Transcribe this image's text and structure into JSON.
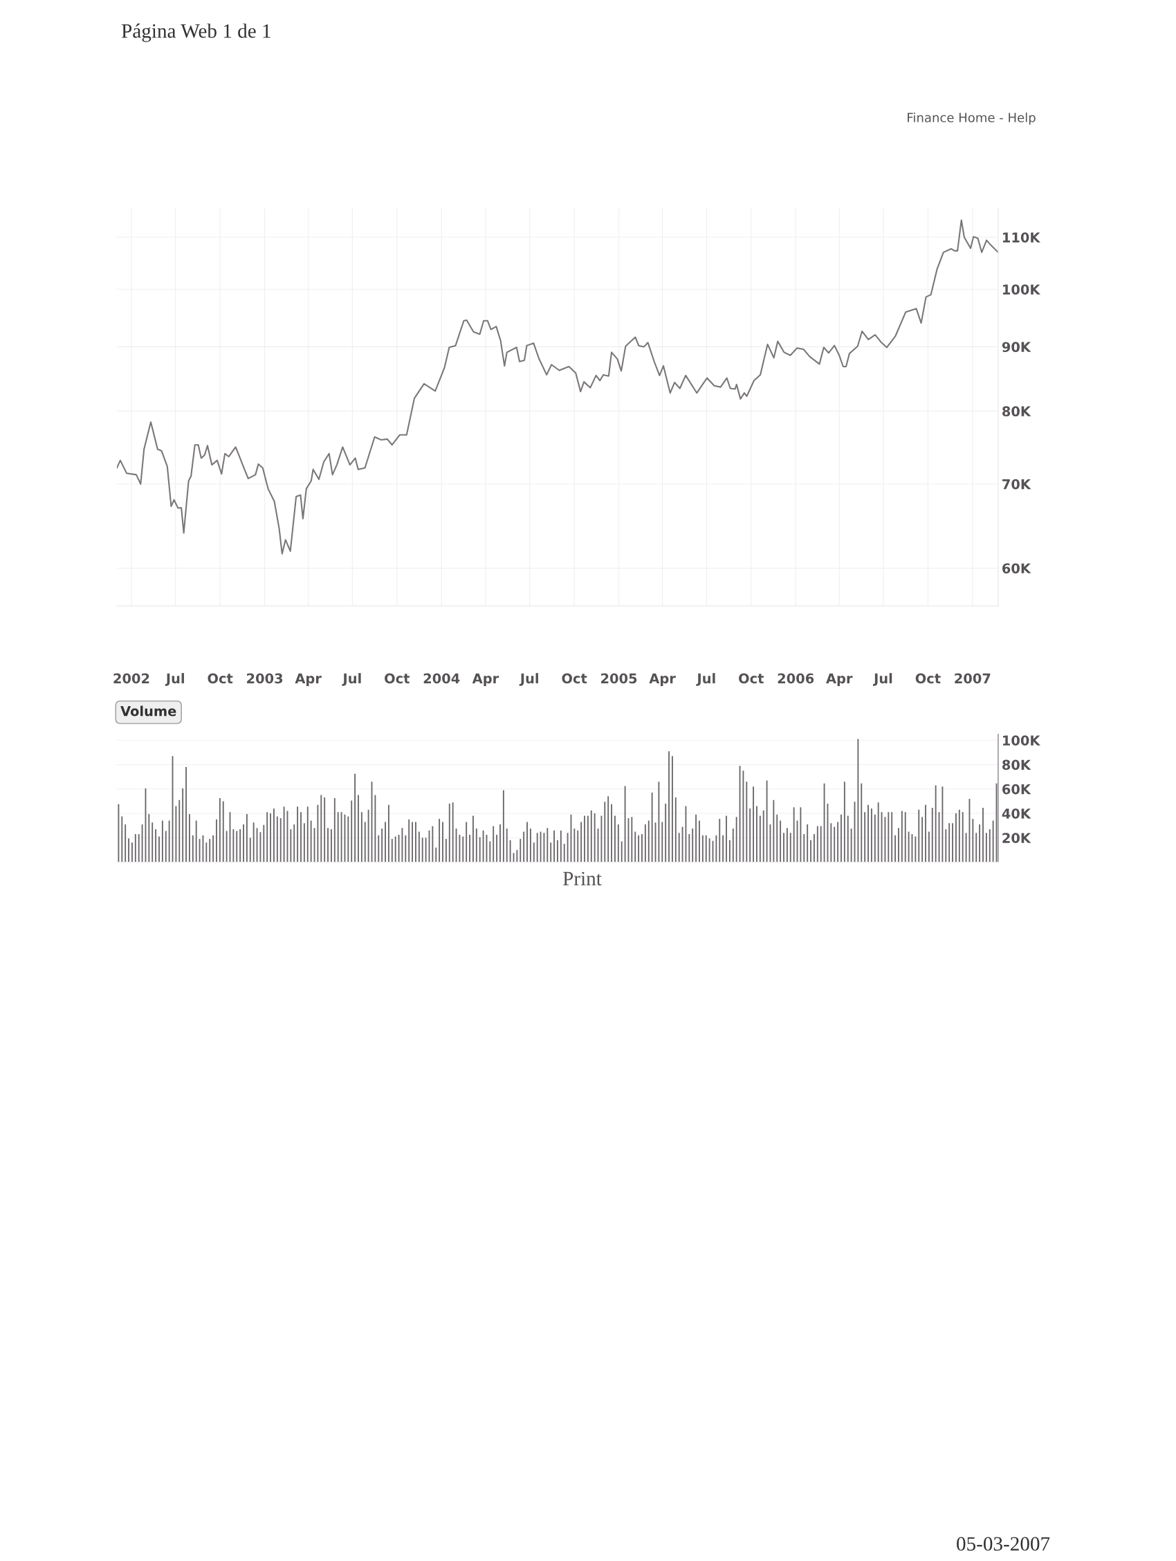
{
  "chart_data": [
    {
      "type": "line",
      "annotations": [
        "Página Web 1 de 1",
        "Finance Home - Help"
      ],
      "xlim": [
        "2002-03-02",
        "2007-02-23"
      ],
      "xticks": [
        {
          "value": "2002-04-01",
          "label": "2002"
        },
        {
          "value": "2002-07-01",
          "label": "Jul"
        },
        {
          "value": "2002-10-01",
          "label": "Oct"
        },
        {
          "value": "2003-01-01",
          "label": "2003"
        },
        {
          "value": "2003-04-01",
          "label": "Apr"
        },
        {
          "value": "2003-07-01",
          "label": "Jul"
        },
        {
          "value": "2003-10-01",
          "label": "Oct"
        },
        {
          "value": "2004-01-01",
          "label": "2004"
        },
        {
          "value": "2004-04-01",
          "label": "Apr"
        },
        {
          "value": "2004-07-01",
          "label": "Jul"
        },
        {
          "value": "2004-10-01",
          "label": "Oct"
        },
        {
          "value": "2005-01-01",
          "label": "2005"
        },
        {
          "value": "2005-04-01",
          "label": "Apr"
        },
        {
          "value": "2005-07-01",
          "label": "Jul"
        },
        {
          "value": "2005-10-01",
          "label": "Oct"
        },
        {
          "value": "2006-01-01",
          "label": "2006"
        },
        {
          "value": "2006-04-01",
          "label": "Apr"
        },
        {
          "value": "2006-07-01",
          "label": "Jul"
        },
        {
          "value": "2006-10-01",
          "label": "Oct"
        },
        {
          "value": "2007-01-01",
          "label": "2007"
        }
      ],
      "log": "y",
      "ylim": [
        56000,
        116000
      ],
      "yticks": [
        {
          "value": 60000,
          "label": "60K"
        },
        {
          "value": 70000,
          "label": "70K"
        },
        {
          "value": 80000,
          "label": "80K"
        },
        {
          "value": 90000,
          "label": "90K"
        },
        {
          "value": 100000,
          "label": "100K"
        },
        {
          "value": 110000,
          "label": "110K"
        }
      ],
      "grid": true,
      "marker": "none",
      "line_style": "solid",
      "series": [
        {
          "color": "#7a767a",
          "x": [
            "2002-03-02",
            "2002-03-09",
            "2002-03-22",
            "2002-04-11",
            "2002-04-20",
            "2002-04-27",
            "2002-05-11",
            "2002-05-25",
            "2002-06-02",
            "2002-06-14",
            "2002-06-22",
            "2002-06-28",
            "2002-07-06",
            "2002-07-13",
            "2002-07-18",
            "2002-07-28",
            "2002-08-02",
            "2002-08-10",
            "2002-08-17",
            "2002-08-23",
            "2002-08-30",
            "2002-09-05",
            "2002-09-14",
            "2002-09-25",
            "2002-10-04",
            "2002-10-11",
            "2002-10-19",
            "2002-11-02",
            "2002-11-10",
            "2002-11-19",
            "2002-11-28",
            "2002-12-13",
            "2002-12-19",
            "2002-12-28",
            "2003-01-08",
            "2003-01-21",
            "2003-01-31",
            "2003-02-06",
            "2003-02-13",
            "2003-02-23",
            "2003-03-07",
            "2003-03-16",
            "2003-03-21",
            "2003-03-28",
            "2003-04-07",
            "2003-04-11",
            "2003-04-23",
            "2003-05-03",
            "2003-05-14",
            "2003-05-21",
            "2003-05-30",
            "2003-06-11",
            "2003-06-26",
            "2003-07-07",
            "2003-07-13",
            "2003-07-27",
            "2003-08-16",
            "2003-08-29",
            "2003-09-11",
            "2003-09-21",
            "2003-10-07",
            "2003-10-21",
            "2003-11-06",
            "2003-11-26",
            "2003-12-19",
            "2004-01-07",
            "2004-01-17",
            "2004-01-30",
            "2004-02-16",
            "2004-02-22",
            "2004-03-07",
            "2004-03-20",
            "2004-03-28",
            "2004-04-05",
            "2004-04-12",
            "2004-04-23",
            "2004-05-02",
            "2004-05-10",
            "2004-05-15",
            "2004-06-04",
            "2004-06-10",
            "2004-06-20",
            "2004-06-25",
            "2004-07-09",
            "2004-07-20",
            "2004-08-05",
            "2004-08-15",
            "2004-08-31",
            "2004-09-20",
            "2004-10-04",
            "2004-10-14",
            "2004-10-21",
            "2004-11-03",
            "2004-11-15",
            "2004-11-23",
            "2004-11-30",
            "2004-12-11",
            "2004-12-17",
            "2004-12-29",
            "2005-01-06",
            "2005-01-15",
            "2005-02-04",
            "2005-02-11",
            "2005-02-22",
            "2005-03-02",
            "2005-03-15",
            "2005-03-26",
            "2005-04-03",
            "2005-04-17",
            "2005-04-26",
            "2005-05-07",
            "2005-05-19",
            "2005-06-11",
            "2005-07-02",
            "2005-07-17",
            "2005-07-30",
            "2005-08-12",
            "2005-08-19",
            "2005-08-29",
            "2005-09-01",
            "2005-09-09",
            "2005-09-17",
            "2005-09-22",
            "2005-10-07",
            "2005-10-20",
            "2005-11-04",
            "2005-11-17",
            "2005-11-25",
            "2005-12-08",
            "2005-12-21",
            "2006-01-04",
            "2006-01-17",
            "2006-01-30",
            "2006-02-19",
            "2006-02-28",
            "2006-03-10",
            "2006-03-22",
            "2006-04-01",
            "2006-04-09",
            "2006-04-15",
            "2006-04-22",
            "2006-05-09",
            "2006-05-18",
            "2006-05-31",
            "2006-06-14",
            "2006-06-27",
            "2006-07-08",
            "2006-07-26",
            "2006-08-16",
            "2006-09-07",
            "2006-09-17",
            "2006-09-27",
            "2006-10-07",
            "2006-10-20",
            "2006-11-02",
            "2006-11-18",
            "2006-11-25",
            "2006-12-01",
            "2006-12-09",
            "2006-12-15",
            "2006-12-28",
            "2007-01-03",
            "2007-01-12",
            "2007-01-20",
            "2007-01-30",
            "2007-02-08",
            "2007-02-23"
          ],
          "values": [
            72100,
            73100,
            71400,
            71200,
            70000,
            74600,
            78400,
            74600,
            74400,
            72300,
            67200,
            68000,
            67000,
            67000,
            64000,
            70400,
            71000,
            75200,
            75200,
            73400,
            73800,
            75100,
            72500,
            73100,
            71300,
            74000,
            73600,
            74900,
            73600,
            72100,
            70700,
            71200,
            72600,
            72100,
            69400,
            67800,
            64500,
            61600,
            63200,
            61900,
            68400,
            68600,
            65700,
            69400,
            70400,
            71900,
            70600,
            72900,
            74000,
            71200,
            72500,
            74900,
            72500,
            73400,
            71900,
            72100,
            76300,
            75900,
            76000,
            75200,
            76600,
            76600,
            81900,
            84100,
            83000,
            86600,
            89900,
            90200,
            94400,
            94500,
            92500,
            92100,
            94400,
            94400,
            92900,
            93400,
            91000,
            86900,
            89100,
            89900,
            87600,
            87800,
            90200,
            90600,
            88100,
            85500,
            87100,
            86200,
            86800,
            85800,
            82900,
            84400,
            83500,
            85400,
            84600,
            85500,
            85300,
            89100,
            88000,
            86100,
            90100,
            91600,
            90200,
            90000,
            90700,
            87600,
            85400,
            86900,
            82700,
            84300,
            83400,
            85400,
            82700,
            85000,
            83800,
            83600,
            85000,
            83400,
            83300,
            84000,
            81800,
            82700,
            82200,
            84600,
            85500,
            90400,
            88200,
            90900,
            89100,
            88600,
            89800,
            89600,
            88400,
            87200,
            89900,
            89000,
            90200,
            88600,
            86800,
            86800,
            88900,
            90100,
            92600,
            91200,
            92000,
            90700,
            89900,
            91800,
            95900,
            96500,
            94000,
            98600,
            99000,
            103800,
            107000,
            107700,
            107300,
            107300,
            113500,
            110000,
            107800,
            110100,
            109800,
            107000,
            109400,
            108400,
            107000
          ]
        }
      ]
    },
    {
      "type": "bar",
      "title": "Volume",
      "annotations": [
        "Print",
        "05-03-2007"
      ],
      "tick_labels": "y",
      "grid": "y",
      "ylim": [
        0,
        105000
      ],
      "yticks": [
        {
          "value": 20000,
          "label": "20K"
        },
        {
          "value": 40000,
          "label": "40K"
        },
        {
          "value": 60000,
          "label": "60K"
        },
        {
          "value": 80000,
          "label": "80K"
        },
        {
          "value": 100000,
          "label": "100K"
        }
      ],
      "categories": [
        null,
        null,
        null,
        null,
        null,
        null,
        null,
        null,
        null,
        null,
        null,
        null,
        null,
        null,
        null,
        null,
        null,
        null,
        null,
        null,
        null,
        null,
        null,
        null,
        null,
        null,
        null,
        null,
        null,
        null,
        null,
        null,
        null,
        null,
        null,
        null,
        null,
        null,
        null,
        null,
        null,
        null,
        null,
        null,
        null,
        null,
        null,
        null,
        null,
        null,
        null,
        null,
        null,
        null,
        null,
        null,
        null,
        null,
        null,
        null,
        null,
        null,
        null,
        null,
        null,
        null,
        null,
        null,
        null,
        null,
        null,
        null,
        null,
        null,
        null,
        null,
        null,
        null,
        null,
        null,
        null,
        null,
        null,
        null,
        null,
        null,
        null,
        null,
        null,
        null,
        null,
        null,
        null,
        null,
        null,
        null,
        null,
        null,
        null,
        null,
        null,
        null,
        null,
        null,
        null,
        null,
        null,
        null,
        null,
        null,
        null,
        null,
        null,
        null,
        null,
        null,
        null,
        null,
        null,
        null,
        null,
        null,
        null,
        null,
        null,
        null,
        null,
        null,
        null,
        null,
        null,
        null,
        null,
        null,
        null,
        null,
        null,
        null,
        null,
        null,
        null,
        null,
        null,
        null,
        null,
        null,
        null,
        null,
        null,
        null,
        null,
        null,
        null,
        null,
        null,
        null,
        null,
        null,
        null,
        null,
        null,
        null,
        null,
        null,
        null,
        null,
        null,
        null,
        null,
        null,
        null,
        null,
        null,
        null,
        null,
        null,
        null,
        null,
        null,
        null,
        null,
        null,
        null,
        null,
        null,
        null,
        null,
        null,
        null,
        null,
        null,
        null,
        null,
        null,
        null,
        null,
        null,
        null,
        null,
        null,
        null,
        null,
        null,
        null,
        null,
        null,
        null,
        null,
        null,
        null,
        null,
        null,
        null,
        null,
        null,
        null,
        null,
        null,
        null,
        null,
        null,
        null,
        null,
        null,
        null,
        null,
        null,
        null,
        null,
        null,
        null,
        null,
        null,
        null,
        null,
        null,
        null,
        null,
        null,
        null,
        null,
        null,
        null,
        null,
        null,
        null,
        null,
        null,
        null,
        null,
        null,
        null,
        null,
        null,
        null,
        null,
        null,
        null,
        null,
        null,
        null
      ],
      "series": [
        {
          "color": "#6a666a",
          "values": [
            47500,
            37500,
            31000,
            19500,
            16000,
            23000,
            23000,
            31000,
            60500,
            39500,
            32500,
            27000,
            21000,
            34000,
            25500,
            34000,
            87000,
            46000,
            51000,
            60500,
            78000,
            39500,
            22000,
            34000,
            19000,
            22000,
            16000,
            19000,
            22000,
            35000,
            52500,
            50000,
            25500,
            41000,
            27000,
            25500,
            27000,
            31000,
            39500,
            20000,
            32500,
            28000,
            24500,
            30500,
            41000,
            40000,
            44000,
            37500,
            36000,
            45500,
            42000,
            27000,
            31000,
            45500,
            41000,
            32000,
            45500,
            34000,
            28000,
            47000,
            55000,
            53000,
            28000,
            27000,
            52500,
            41000,
            41000,
            39000,
            37500,
            50500,
            72500,
            55000,
            41000,
            33000,
            43000,
            66000,
            55000,
            22000,
            27500,
            33000,
            47000,
            19000,
            21000,
            22500,
            28000,
            22000,
            35000,
            33000,
            33000,
            25000,
            20000,
            20000,
            26000,
            29500,
            12000,
            35500,
            33000,
            19000,
            48000,
            49000,
            27500,
            22500,
            21000,
            33000,
            22500,
            38000,
            27500,
            20500,
            26000,
            22500,
            17000,
            29500,
            22500,
            31000,
            59000,
            27500,
            18000,
            7500,
            10000,
            19000,
            25000,
            33000,
            27500,
            16000,
            24000,
            25000,
            24000,
            28000,
            16000,
            26000,
            18000,
            26000,
            15000,
            24000,
            39000,
            27500,
            26000,
            33000,
            38000,
            38000,
            42500,
            40000,
            27500,
            38000,
            49500,
            54000,
            47500,
            38000,
            31000,
            17000,
            62500,
            36000,
            37000,
            25000,
            22000,
            23000,
            31000,
            34000,
            57000,
            32500,
            66000,
            33000,
            48000,
            91000,
            87000,
            53000,
            24000,
            29000,
            46000,
            23000,
            27500,
            39000,
            34000,
            22000,
            22000,
            19500,
            17500,
            22000,
            35500,
            22000,
            38000,
            18000,
            27500,
            37000,
            79000,
            75000,
            66000,
            44000,
            62000,
            46000,
            38000,
            42500,
            67000,
            31000,
            51000,
            39000,
            34000,
            24000,
            28000,
            24000,
            45000,
            34000,
            45000,
            23000,
            31000,
            18000,
            23000,
            29500,
            29500,
            64500,
            48000,
            32000,
            29000,
            33000,
            39000,
            66000,
            38000,
            27500,
            49500,
            101000,
            64500,
            41000,
            47000,
            44000,
            39000,
            49000,
            41000,
            37000,
            41000,
            41000,
            22000,
            28000,
            42000,
            41000,
            25000,
            23000,
            21000,
            43000,
            37000,
            47000,
            25000,
            44500,
            63000,
            41000,
            62000,
            27000,
            32000,
            32000,
            40000,
            43000,
            41000,
            24000,
            52000,
            35500,
            24000,
            31000,
            44500,
            24000,
            27000,
            34000,
            64500
          ]
        }
      ]
    }
  ]
}
